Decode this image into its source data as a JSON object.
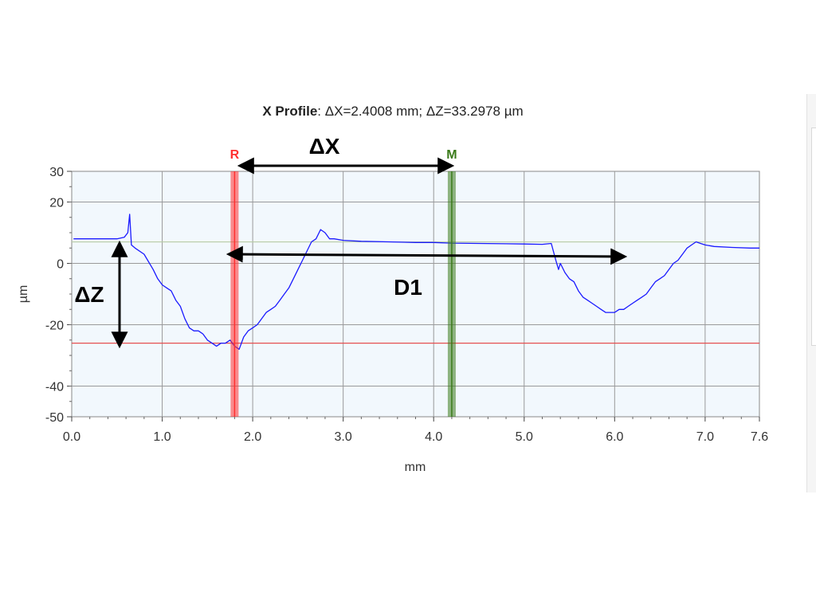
{
  "chart_data": {
    "type": "line",
    "title_bold": "X Profile",
    "title_rest": ": ΔX=2.4008 mm; ΔZ=33.2978 µm",
    "xlabel": "mm",
    "ylabel": "µm",
    "xlim": [
      0.0,
      7.6
    ],
    "ylim": [
      -50,
      30
    ],
    "x_ticks": [
      0.0,
      1.0,
      2.0,
      3.0,
      4.0,
      5.0,
      6.0,
      7.0,
      7.6
    ],
    "x_tick_labels": [
      "0.0",
      "1.0",
      "2.0",
      "3.0",
      "4.0",
      "5.0",
      "6.0",
      "7.0",
      "7.6"
    ],
    "y_ticks": [
      30,
      20,
      0,
      -20,
      -40,
      -50
    ],
    "y_tick_labels": [
      "30",
      "20",
      "0",
      "-20",
      "-40",
      "-50"
    ],
    "grid": true,
    "reference_lines": [
      {
        "axis": "y",
        "value": 7,
        "color": "#b9cca5"
      },
      {
        "axis": "y",
        "value": -26,
        "color": "#e55050"
      }
    ],
    "markers": [
      {
        "label": "R",
        "x": 1.8,
        "color": "#ff3030"
      },
      {
        "label": "M",
        "x": 4.2,
        "color": "#3a7a1a"
      }
    ],
    "annotations": {
      "delta_x": "ΔX",
      "delta_z": "ΔZ",
      "d1": "D1"
    },
    "series": [
      {
        "color": "#1a1aff",
        "x": [
          0.02,
          0.3,
          0.5,
          0.58,
          0.62,
          0.64,
          0.66,
          0.7,
          0.8,
          0.9,
          0.95,
          1.0,
          1.05,
          1.1,
          1.15,
          1.2,
          1.25,
          1.3,
          1.35,
          1.4,
          1.45,
          1.5,
          1.55,
          1.6,
          1.65,
          1.7,
          1.75,
          1.8,
          1.85,
          1.9,
          1.95,
          2.0,
          2.05,
          2.1,
          2.15,
          2.2,
          2.25,
          2.3,
          2.35,
          2.4,
          2.45,
          2.5,
          2.55,
          2.6,
          2.65,
          2.7,
          2.75,
          2.8,
          2.85,
          2.9,
          3.0,
          3.2,
          3.5,
          3.8,
          4.0,
          4.2,
          4.5,
          4.8,
          5.0,
          5.2,
          5.3,
          5.35,
          5.38,
          5.4,
          5.45,
          5.5,
          5.55,
          5.6,
          5.65,
          5.7,
          5.75,
          5.8,
          5.85,
          5.9,
          5.95,
          6.0,
          6.05,
          6.1,
          6.15,
          6.2,
          6.25,
          6.3,
          6.35,
          6.4,
          6.45,
          6.5,
          6.55,
          6.6,
          6.65,
          6.7,
          6.75,
          6.8,
          6.85,
          6.9,
          6.95,
          7.0,
          7.1,
          7.3,
          7.5,
          7.6
        ],
        "y": [
          8,
          8,
          8,
          8.5,
          10,
          16,
          6,
          5,
          3,
          -2,
          -5,
          -7,
          -8,
          -9,
          -12,
          -14,
          -18,
          -21,
          -22,
          -22,
          -23,
          -25,
          -26,
          -27,
          -26,
          -26,
          -25,
          -27,
          -28,
          -24,
          -22,
          -21,
          -20,
          -18,
          -16,
          -15,
          -14,
          -12,
          -10,
          -8,
          -5,
          -2,
          1,
          4,
          7,
          8,
          11,
          10,
          8,
          8,
          7.5,
          7.2,
          7,
          6.8,
          6.8,
          6.6,
          6.5,
          6.4,
          6.3,
          6.2,
          6.5,
          1,
          -2,
          0,
          -3,
          -5,
          -6,
          -9,
          -11,
          -12,
          -13,
          -14,
          -15,
          -16,
          -16,
          -16,
          -15,
          -15,
          -14,
          -13,
          -12,
          -11,
          -10,
          -8,
          -6,
          -5,
          -4,
          -2,
          0,
          1,
          3,
          5,
          6,
          7,
          6.5,
          6,
          5.5,
          5.2,
          5,
          5
        ]
      }
    ]
  }
}
